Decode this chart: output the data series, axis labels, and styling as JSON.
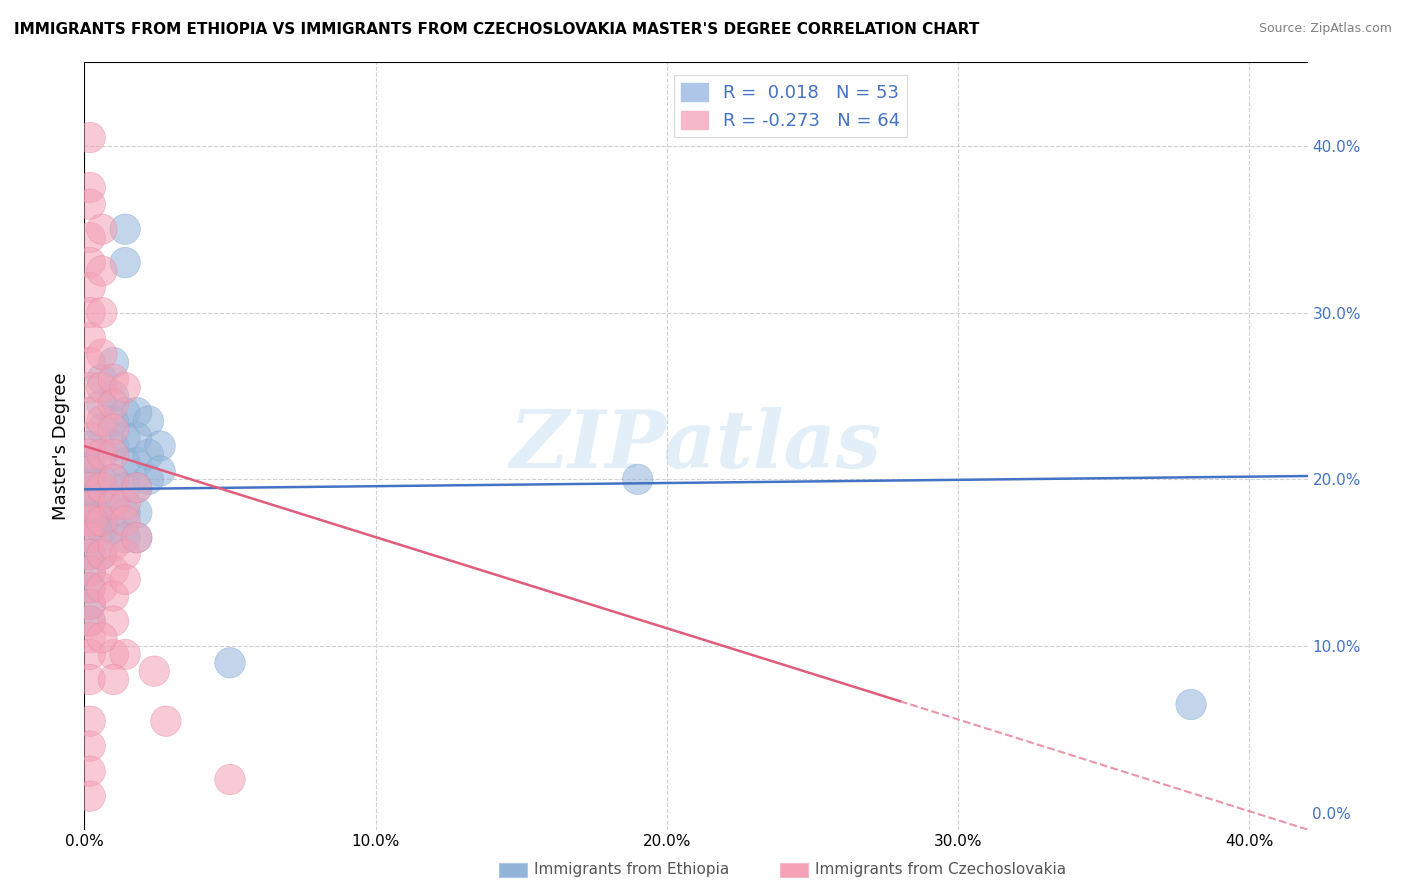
{
  "title": "IMMIGRANTS FROM ETHIOPIA VS IMMIGRANTS FROM CZECHOSLOVAKIA MASTER'S DEGREE CORRELATION CHART",
  "source": "Source: ZipAtlas.com",
  "ylabel_left": "Master's Degree",
  "xlim": [
    0.0,
    0.42
  ],
  "ylim": [
    -0.01,
    0.45
  ],
  "watermark": "ZIPatlas",
  "legend": {
    "ethiopia": {
      "R": 0.018,
      "N": 53,
      "color": "#aec6e8"
    },
    "czechoslovakia": {
      "R": -0.273,
      "N": 64,
      "color": "#f4b8c8"
    }
  },
  "ethiopia_scatter": [
    [
      0.002,
      0.195
    ],
    [
      0.002,
      0.185
    ],
    [
      0.002,
      0.175
    ],
    [
      0.002,
      0.165
    ],
    [
      0.002,
      0.21
    ],
    [
      0.002,
      0.22
    ],
    [
      0.002,
      0.155
    ],
    [
      0.002,
      0.145
    ],
    [
      0.002,
      0.135
    ],
    [
      0.002,
      0.125
    ],
    [
      0.002,
      0.115
    ],
    [
      0.002,
      0.2
    ],
    [
      0.006,
      0.26
    ],
    [
      0.006,
      0.245
    ],
    [
      0.006,
      0.23
    ],
    [
      0.006,
      0.215
    ],
    [
      0.006,
      0.2
    ],
    [
      0.006,
      0.185
    ],
    [
      0.006,
      0.17
    ],
    [
      0.006,
      0.155
    ],
    [
      0.01,
      0.27
    ],
    [
      0.01,
      0.25
    ],
    [
      0.01,
      0.235
    ],
    [
      0.01,
      0.22
    ],
    [
      0.01,
      0.2
    ],
    [
      0.01,
      0.185
    ],
    [
      0.01,
      0.17
    ],
    [
      0.014,
      0.35
    ],
    [
      0.014,
      0.33
    ],
    [
      0.014,
      0.24
    ],
    [
      0.014,
      0.225
    ],
    [
      0.014,
      0.21
    ],
    [
      0.014,
      0.195
    ],
    [
      0.014,
      0.18
    ],
    [
      0.014,
      0.165
    ],
    [
      0.018,
      0.24
    ],
    [
      0.018,
      0.225
    ],
    [
      0.018,
      0.21
    ],
    [
      0.018,
      0.195
    ],
    [
      0.018,
      0.18
    ],
    [
      0.018,
      0.165
    ],
    [
      0.022,
      0.235
    ],
    [
      0.022,
      0.215
    ],
    [
      0.022,
      0.2
    ],
    [
      0.026,
      0.22
    ],
    [
      0.026,
      0.205
    ],
    [
      0.05,
      0.09
    ],
    [
      0.19,
      0.2
    ],
    [
      0.38,
      0.065
    ],
    [
      0.002,
      0.19
    ],
    [
      0.002,
      0.18
    ],
    [
      0.002,
      0.205
    ],
    [
      0.006,
      0.175
    ]
  ],
  "ethiopia_sizes": [
    40,
    40,
    40,
    40,
    40,
    40,
    40,
    40,
    40,
    40,
    40,
    40,
    40,
    40,
    40,
    40,
    40,
    40,
    40,
    40,
    40,
    40,
    40,
    40,
    40,
    40,
    40,
    40,
    40,
    40,
    40,
    40,
    40,
    40,
    40,
    40,
    40,
    40,
    40,
    40,
    40,
    40,
    40,
    40,
    40,
    40,
    40,
    40,
    40,
    40,
    40,
    40,
    40
  ],
  "ethiopia_large": [
    [
      0.002,
      0.185
    ]
  ],
  "ethiopia_large_size": [
    600
  ],
  "czechoslovakia_scatter": [
    [
      0.002,
      0.405
    ],
    [
      0.002,
      0.375
    ],
    [
      0.002,
      0.345
    ],
    [
      0.002,
      0.33
    ],
    [
      0.002,
      0.315
    ],
    [
      0.002,
      0.3
    ],
    [
      0.002,
      0.285
    ],
    [
      0.002,
      0.27
    ],
    [
      0.002,
      0.255
    ],
    [
      0.002,
      0.24
    ],
    [
      0.002,
      0.225
    ],
    [
      0.002,
      0.215
    ],
    [
      0.002,
      0.205
    ],
    [
      0.002,
      0.195
    ],
    [
      0.002,
      0.185
    ],
    [
      0.002,
      0.175
    ],
    [
      0.002,
      0.165
    ],
    [
      0.002,
      0.155
    ],
    [
      0.002,
      0.145
    ],
    [
      0.002,
      0.135
    ],
    [
      0.002,
      0.125
    ],
    [
      0.002,
      0.115
    ],
    [
      0.002,
      0.105
    ],
    [
      0.002,
      0.095
    ],
    [
      0.002,
      0.08
    ],
    [
      0.002,
      0.055
    ],
    [
      0.002,
      0.04
    ],
    [
      0.002,
      0.025
    ],
    [
      0.002,
      0.01
    ],
    [
      0.006,
      0.35
    ],
    [
      0.006,
      0.325
    ],
    [
      0.006,
      0.3
    ],
    [
      0.006,
      0.275
    ],
    [
      0.006,
      0.255
    ],
    [
      0.006,
      0.235
    ],
    [
      0.006,
      0.215
    ],
    [
      0.006,
      0.195
    ],
    [
      0.006,
      0.175
    ],
    [
      0.006,
      0.155
    ],
    [
      0.006,
      0.135
    ],
    [
      0.01,
      0.26
    ],
    [
      0.01,
      0.245
    ],
    [
      0.01,
      0.23
    ],
    [
      0.01,
      0.215
    ],
    [
      0.01,
      0.2
    ],
    [
      0.01,
      0.185
    ],
    [
      0.01,
      0.16
    ],
    [
      0.01,
      0.145
    ],
    [
      0.01,
      0.13
    ],
    [
      0.01,
      0.115
    ],
    [
      0.01,
      0.095
    ],
    [
      0.014,
      0.255
    ],
    [
      0.014,
      0.185
    ],
    [
      0.014,
      0.175
    ],
    [
      0.014,
      0.155
    ],
    [
      0.014,
      0.095
    ],
    [
      0.018,
      0.195
    ],
    [
      0.018,
      0.165
    ],
    [
      0.024,
      0.085
    ],
    [
      0.028,
      0.055
    ],
    [
      0.05,
      0.02
    ],
    [
      0.002,
      0.365
    ],
    [
      0.006,
      0.105
    ],
    [
      0.01,
      0.08
    ],
    [
      0.014,
      0.14
    ]
  ],
  "czechoslovakia_sizes": [
    40,
    40,
    40,
    40,
    40,
    40,
    40,
    40,
    40,
    40,
    40,
    40,
    40,
    40,
    40,
    40,
    40,
    40,
    40,
    40,
    40,
    40,
    40,
    40,
    40,
    40,
    40,
    40,
    40,
    40,
    40,
    40,
    40,
    40,
    40,
    40,
    40,
    40,
    40,
    40,
    40,
    40,
    40,
    40,
    40,
    40,
    40,
    40,
    40,
    40,
    40,
    40,
    40,
    40,
    40,
    40,
    40,
    40,
    40,
    40,
    40,
    40,
    40,
    40,
    40
  ],
  "czechoslovakia_large": [
    [
      0.002,
      0.175
    ]
  ],
  "czechoslovakia_large_size": [
    600
  ],
  "ethiopia_line": {
    "x0": 0.0,
    "y0": 0.194,
    "x1": 0.42,
    "y1": 0.202
  },
  "czechoslovakia_line_solid": {
    "x0": 0.0,
    "y0": 0.22,
    "x1": 0.28,
    "y1": 0.067
  },
  "czechoslovakia_line_dashed": {
    "x0": 0.28,
    "y0": 0.067,
    "x1": 0.42,
    "y1": -0.01
  },
  "grid_color": "#d0d0d0",
  "scatter_alpha": 0.55,
  "ethiopia_color": "#92b4d9",
  "czechoslovakia_color": "#f4a0b5",
  "line_ethiopia_color": "#4472c4",
  "line_czechoslovakia_color": "#e05c7a",
  "background_color": "#ffffff",
  "x_ticks": [
    0.0,
    0.1,
    0.2,
    0.3,
    0.4
  ],
  "y_ticks_right": [
    0.0,
    0.1,
    0.2,
    0.3,
    0.4
  ]
}
